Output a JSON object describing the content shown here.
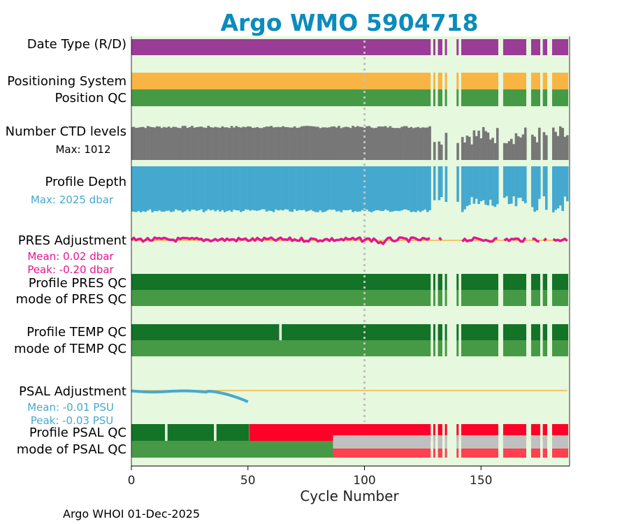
{
  "chart_data": {
    "type": "timeline",
    "title": "Argo WMO 5904718",
    "xlabel": "Cycle Number",
    "xlim": [
      0,
      188
    ],
    "xticks": [
      0,
      50,
      100,
      150
    ],
    "reference_line_cycle": 100,
    "gap_cycles": [
      129,
      131,
      134,
      136,
      137,
      138,
      139,
      141,
      158,
      159,
      170,
      171,
      176,
      179,
      180
    ],
    "rows": [
      {
        "id": "datatype",
        "label": "Date Type (R/D)",
        "color": "#9b3c97"
      },
      {
        "id": "possys",
        "label": "Positioning System",
        "color": "#f9b544"
      },
      {
        "id": "posqc",
        "label": "Position QC",
        "color": "#469a46"
      },
      {
        "id": "nlevels",
        "label": "Number CTD levels",
        "sublabel": "Max: 1012",
        "color": "#777777"
      },
      {
        "id": "depth",
        "label": "Profile Depth",
        "sublabel": "Max: 2025 dbar",
        "color": "#45a9cf"
      },
      {
        "id": "presadj",
        "label": "PRES Adjustment",
        "sublabel": "Mean: 0.02 dbar",
        "sublabel2": "Peak: -0.20 dbar",
        "color": "#e4168e"
      },
      {
        "id": "prespqc",
        "label": "Profile PRES QC",
        "color": "#137327"
      },
      {
        "id": "presmode",
        "label": "mode of PRES QC",
        "color": "#469a46"
      },
      {
        "id": "temppqc",
        "label": "Profile TEMP QC",
        "color": "#137327",
        "break_cycles": [
          64
        ]
      },
      {
        "id": "tempmode",
        "label": "mode of TEMP QC",
        "color": "#469a46"
      },
      {
        "id": "psaladj",
        "label": "PSAL Adjustment",
        "sublabel": "Mean: -0.01 PSU",
        "sublabel2": "Peak: -0.03 PSU",
        "color": "#45a9cf",
        "last_cycle": 50
      },
      {
        "id": "psalpqc",
        "label": "Profile PSAL QC",
        "green": "#137327",
        "red": "#ff0028",
        "green_until": 50,
        "break_cycles": [
          15,
          36
        ]
      },
      {
        "id": "psalmode",
        "label": "mode of PSAL QC",
        "green": "#469a46",
        "gray": "#c0c0c0",
        "red": "#ff4050",
        "green_until": 86
      }
    ]
  },
  "colors": {
    "plot_background": "#e6f8de",
    "zero_line": "#f0b840",
    "reference_line": "#c0c0c0"
  },
  "footer": "Argo WHOI 01-Dec-2025"
}
